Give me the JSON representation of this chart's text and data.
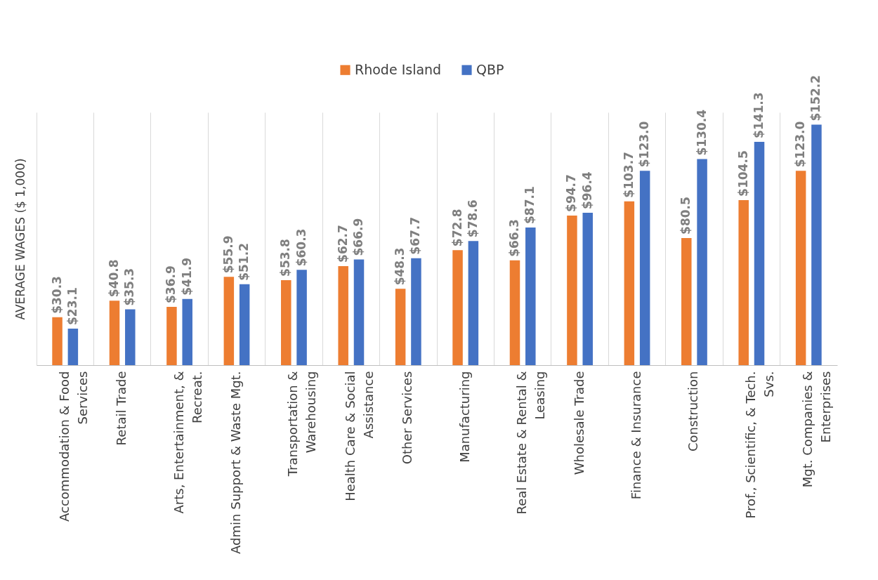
{
  "chart_data": {
    "type": "bar",
    "ylabel": "AVERAGE WAGES ($ 1,000)",
    "categories": [
      "Accommodation & Food Services",
      "Retail Trade",
      "Arts, Entertainment, & Recreat.",
      "Admin Support & Waste Mgt.",
      "Transportation & Warehousing",
      "Health Care & Social Assistance",
      "Other Services",
      "Manufacturing",
      "Real Estate & Rental & Leasing",
      "Wholesale Trade",
      "Finance & Insurance",
      "Construction",
      "Prof., Scientific, & Tech. Svs.",
      "Mgt. Companies & Enterprises"
    ],
    "series": [
      {
        "name": "Rhode Island",
        "color": "#ed7d31",
        "values": [
          30.3,
          40.8,
          36.9,
          55.9,
          53.8,
          62.7,
          48.3,
          72.8,
          66.3,
          94.7,
          103.7,
          80.5,
          104.5,
          123.0
        ],
        "value_labels": [
          "$30.3",
          "$40.8",
          "$36.9",
          "$55.9",
          "$53.8",
          "$62.7",
          "$48.3",
          "$72.8",
          "$66.3",
          "$94.7",
          "$103.7",
          "$80.5",
          "$104.5",
          "$123.0"
        ]
      },
      {
        "name": "QBP",
        "color": "#4472c4",
        "values": [
          23.1,
          35.3,
          41.9,
          51.2,
          60.3,
          66.9,
          67.7,
          78.6,
          87.1,
          96.4,
          123.0,
          130.4,
          141.3,
          152.2
        ],
        "value_labels": [
          "$23.1",
          "$35.3",
          "$41.9",
          "$51.2",
          "$60.3",
          "$66.9",
          "$67.7",
          "$78.6",
          "$87.1",
          "$96.4",
          "$123.0",
          "$130.4",
          "$141.3",
          "$152.2"
        ]
      }
    ],
    "grid": "x",
    "legend": "top"
  }
}
